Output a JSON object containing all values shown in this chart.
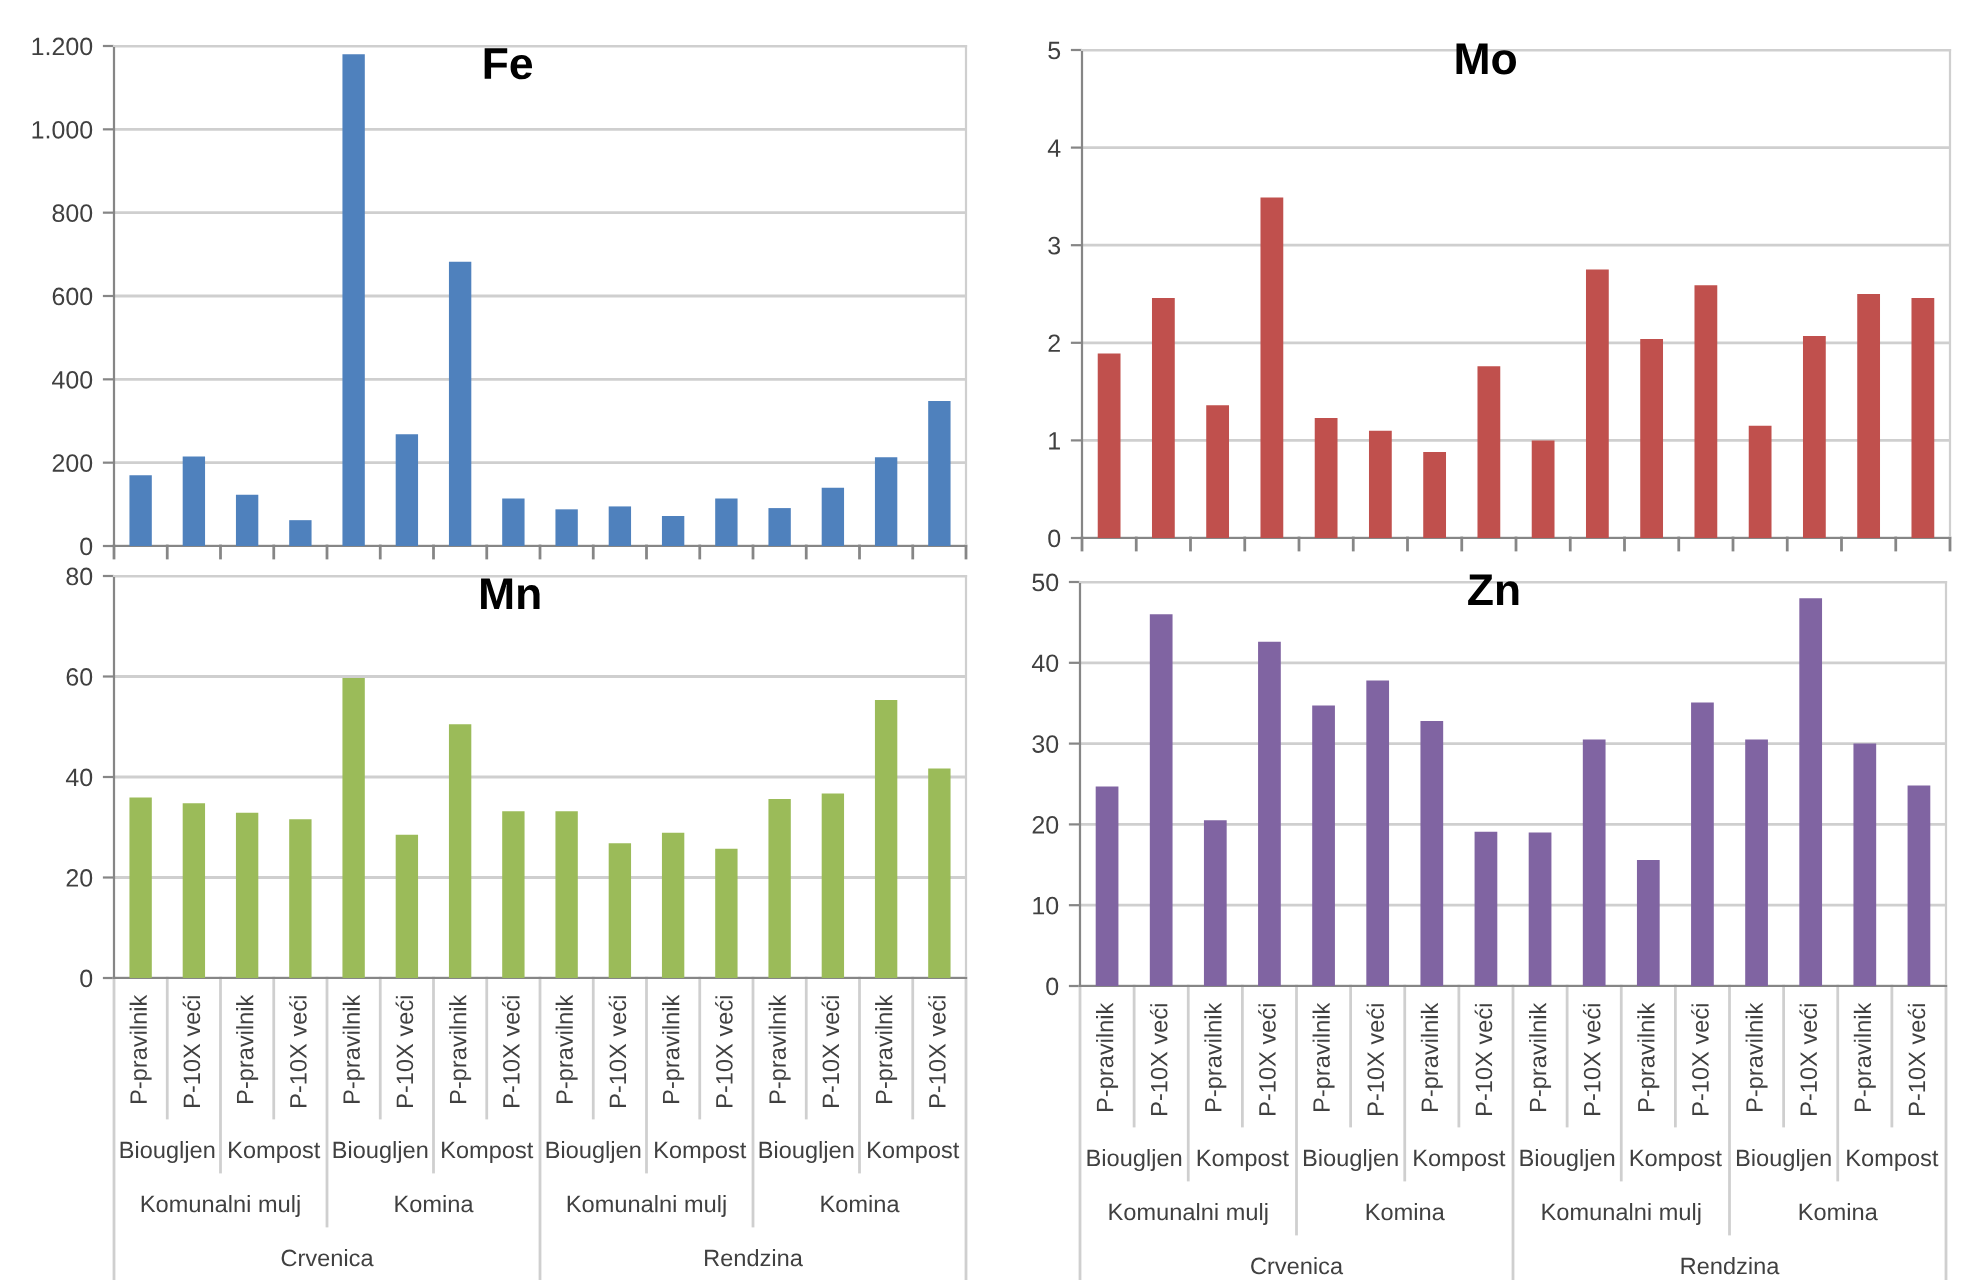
{
  "chart_data": [
    {
      "type": "bar",
      "title": "Fe",
      "categories": [
        null,
        null,
        null,
        null,
        null,
        null,
        null,
        null,
        null,
        null,
        null,
        null,
        null,
        null,
        null,
        null
      ],
      "values": [
        170,
        215,
        123,
        62,
        1180,
        268,
        682,
        114,
        88,
        95,
        72,
        114,
        91,
        140,
        213,
        348
      ],
      "color": "#4f81bd",
      "ylim": [
        0,
        1200
      ],
      "yticks": [
        0,
        200,
        400,
        600,
        800,
        {
          "value": 1000,
          "label": "1.000"
        },
        {
          "value": 1200,
          "label": "1.200"
        }
      ],
      "grid": "y",
      "tick_labels": "y"
    },
    {
      "type": "bar",
      "title": "Mo",
      "categories": [
        null,
        null,
        null,
        null,
        null,
        null,
        null,
        null,
        null,
        null,
        null,
        null,
        null,
        null,
        null,
        null
      ],
      "values": [
        1.89,
        2.46,
        1.36,
        3.49,
        1.23,
        1.1,
        0.88,
        1.76,
        1.0,
        2.75,
        2.04,
        2.59,
        1.15,
        2.07,
        2.5,
        2.46
      ],
      "color": "#c0504d",
      "ylim": [
        0,
        5
      ],
      "yticks": [
        0,
        1,
        2,
        3,
        4,
        5
      ],
      "grid": "y",
      "tick_labels": "y"
    },
    {
      "type": "bar",
      "title": "Mn",
      "categories": [
        "P-pravilnik",
        "P-10X veći",
        "P-pravilnik",
        "P-10X veći",
        "P-pravilnik",
        "P-10X veći",
        "P-pravilnik",
        "P-10X veći",
        "P-pravilnik",
        "P-10X veći",
        "P-pravilnik",
        "P-10X veći",
        "P-pravilnik",
        "P-10X veći",
        "P-pravilnik",
        "P-10X veći"
      ],
      "values": [
        35.9,
        34.8,
        32.9,
        31.6,
        59.7,
        28.5,
        50.5,
        33.2,
        33.2,
        26.8,
        28.9,
        25.7,
        35.6,
        36.7,
        55.3,
        41.7
      ],
      "color": "#9bbb59",
      "ylim": [
        0,
        80
      ],
      "yticks": [
        0,
        20,
        40,
        60,
        80
      ],
      "grid": "y",
      "annotations": [
        "Biougljen",
        "Kompost",
        "Biougljen",
        "Kompost",
        "Biougljen",
        "Kompost",
        "Biougljen",
        "Kompost",
        "Komunalni mulj",
        "Komina",
        "Komunalni mulj",
        "Komina",
        "Crvenica",
        "Rendzina"
      ]
    },
    {
      "type": "bar",
      "title": "Zn",
      "categories": [
        "P-pravilnik",
        "P-10X veći",
        "P-pravilnik",
        "P-10X veći",
        "P-pravilnik",
        "P-10X veći",
        "P-pravilnik",
        "P-10X veći",
        "P-pravilnik",
        "P-10X veći",
        "P-pravilnik",
        "P-10X veći",
        "P-pravilnik",
        "P-10X veći",
        "P-pravilnik",
        "P-10X veći"
      ],
      "values": [
        24.7,
        46.0,
        20.5,
        42.6,
        34.7,
        37.8,
        32.8,
        19.1,
        19.0,
        30.5,
        15.6,
        35.1,
        30.5,
        48.0,
        30.0,
        24.8
      ],
      "color": "#8064a2",
      "ylim": [
        0,
        50
      ],
      "yticks": [
        0,
        10,
        20,
        30,
        40,
        50
      ],
      "grid": "y",
      "annotations": [
        "Biougljen",
        "Kompost",
        "Biougljen",
        "Kompost",
        "Biougljen",
        "Kompost",
        "Biougljen",
        "Kompost",
        "Komunalni mulj",
        "Komina",
        "Komunalni mulj",
        "Komina",
        "Crvenica",
        "Rendzina"
      ]
    }
  ]
}
